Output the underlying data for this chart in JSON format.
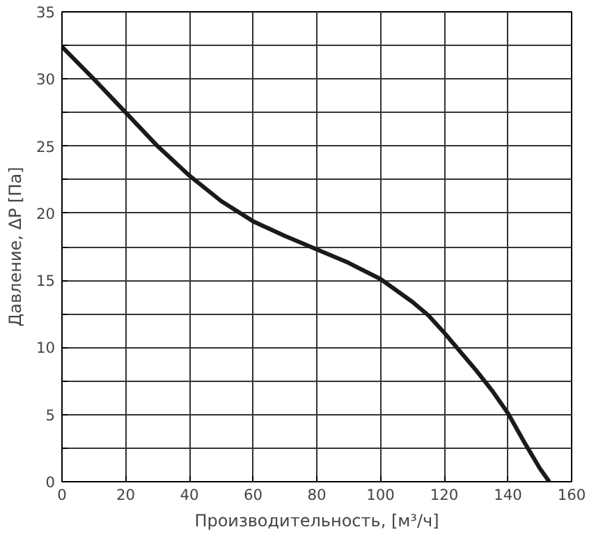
{
  "chart_data": {
    "type": "line",
    "xlabel": "Производительность, [м³/ч]",
    "ylabel": "Давление, ΔP [Па]",
    "x": [
      0,
      10,
      20,
      30,
      40,
      50,
      60,
      70,
      80,
      90,
      100,
      110,
      115,
      120,
      130,
      135,
      140,
      145,
      150,
      153
    ],
    "series": [
      {
        "color": "#1a1a1a",
        "values": [
          32.4,
          30,
          27.5,
          25,
          22.8,
          20.9,
          19.4,
          18.3,
          17.3,
          16.3,
          15.1,
          13.4,
          12.4,
          11.1,
          8.3,
          6.8,
          5.1,
          3.0,
          1.0,
          0
        ]
      }
    ],
    "xlim": [
      0,
      160
    ],
    "xticks": [
      0,
      20,
      40,
      60,
      80,
      100,
      120,
      140,
      160
    ],
    "ylim": [
      0,
      35
    ],
    "yticks": [
      0,
      {
        "value": 2.5,
        "label": null
      },
      5,
      {
        "value": 7.5,
        "label": null
      },
      10,
      {
        "value": 12.5,
        "label": null
      },
      15,
      {
        "value": 17.5,
        "label": null
      },
      20,
      {
        "value": 22.5,
        "label": null
      },
      25,
      {
        "value": 27.5,
        "label": null
      },
      30,
      {
        "value": 32.5,
        "label": null
      },
      35
    ],
    "grid": true,
    "line_style": "solid",
    "marker": "none"
  }
}
